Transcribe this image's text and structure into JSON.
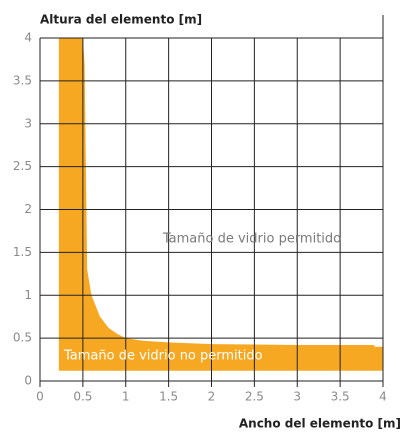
{
  "chart_data": {
    "type": "area",
    "y_axis_label": "Altura del elemento [m]",
    "x_axis_label": "Ancho del elemento [m]",
    "annotations": [
      "Tamaño de vidrio permitido",
      "Tamaño de vidrio no permitido"
    ],
    "x": [
      0.22,
      0.5,
      0.52,
      0.55,
      0.6,
      0.7,
      0.8,
      0.9,
      1.0,
      1.2,
      1.5,
      2.0,
      3.0,
      3.9,
      3.9,
      4.0
    ],
    "values": [
      4,
      4,
      3.7,
      1.3,
      1.0,
      0.75,
      0.62,
      0.55,
      0.5,
      0.47,
      0.45,
      0.43,
      0.42,
      0.42,
      0.4,
      0.4
    ],
    "base": 0.12,
    "color": "#f7a823",
    "xlim": [
      0,
      4
    ],
    "ylim": [
      0,
      4
    ],
    "xticks": [
      0,
      0.5,
      1,
      1.5,
      2,
      2.5,
      3,
      3.5,
      4
    ],
    "yticks": [
      0,
      0.5,
      1,
      1.5,
      2,
      2.5,
      3,
      3.5,
      4
    ],
    "grid": true
  }
}
